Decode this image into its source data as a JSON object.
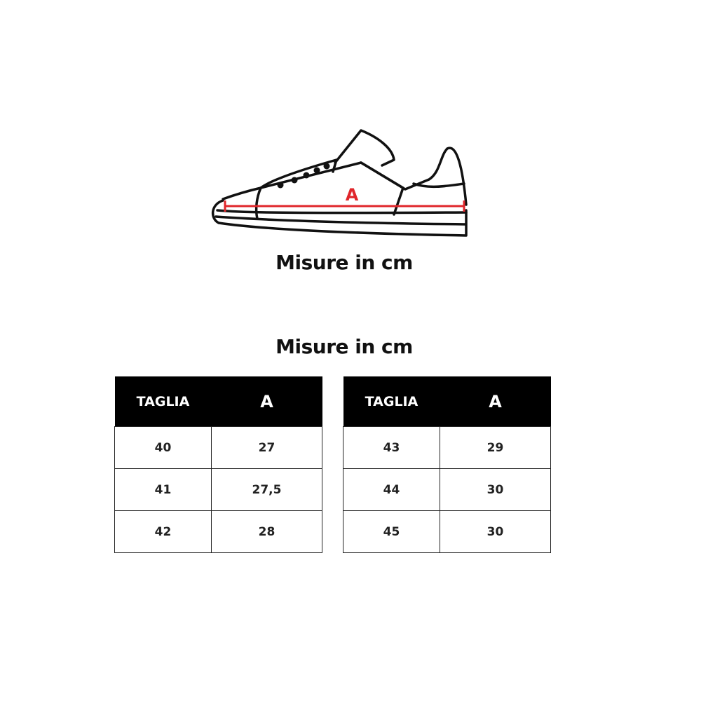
{
  "diagram": {
    "measure_label": "A",
    "measure_color": "#e0262b"
  },
  "title_top": "Misure in cm",
  "title_table": "Misure in cm",
  "tables": [
    {
      "headers": [
        "TAGLIA",
        "A"
      ],
      "rows": [
        [
          "40",
          "27"
        ],
        [
          "41",
          "27,5"
        ],
        [
          "42",
          "28"
        ]
      ]
    },
    {
      "headers": [
        "TAGLIA",
        "A"
      ],
      "rows": [
        [
          "43",
          "29"
        ],
        [
          "44",
          "30"
        ],
        [
          "45",
          "30"
        ]
      ]
    }
  ]
}
